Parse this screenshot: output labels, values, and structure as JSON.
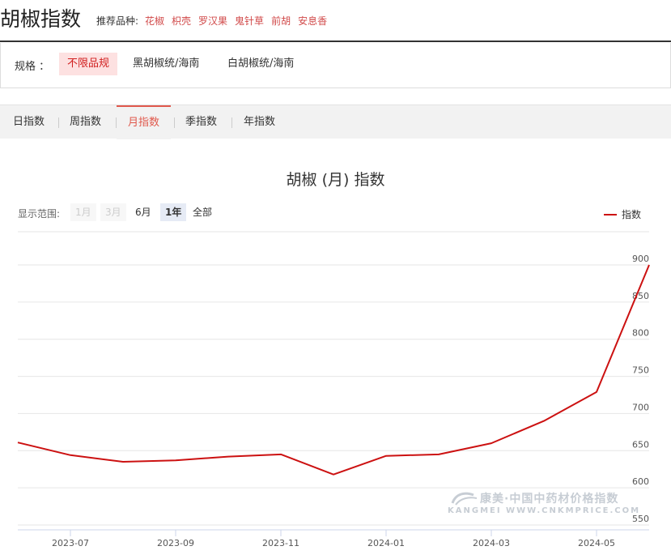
{
  "header": {
    "title": "胡椒指数",
    "recommend_label": "推荐品种:",
    "recommend_items": [
      "花椒",
      "枳壳",
      "罗汉果",
      "鬼针草",
      "前胡",
      "安息香"
    ]
  },
  "spec": {
    "label": "规格 ：",
    "options": [
      "不限品规",
      "黑胡椒统/海南",
      "白胡椒统/海南"
    ],
    "active": "不限品规"
  },
  "tabs": {
    "items": [
      "日指数",
      "周指数",
      "月指数",
      "季指数",
      "年指数"
    ],
    "active": "月指数"
  },
  "range": {
    "label": "显示范围:",
    "buttons": [
      "1月",
      "3月",
      "6月",
      "1年",
      "全部"
    ],
    "selected": "1年",
    "disabled": [
      "1月",
      "3月"
    ]
  },
  "legend": {
    "label": "指数",
    "color": "#cc1111"
  },
  "watermark": {
    "line1": "康美·中国中药材价格指数",
    "line2": "KANGMEI  WWW.CNKMPRICE.COM"
  },
  "chart_data": {
    "type": "line",
    "title": "胡椒 (月) 指数",
    "x": [
      "2023-06",
      "2023-07",
      "2023-08",
      "2023-09",
      "2023-10",
      "2023-11",
      "2023-12",
      "2024-01",
      "2024-02",
      "2024-03",
      "2024-04",
      "2024-05",
      "2024-06"
    ],
    "xtick_labels": [
      "2023-07",
      "2023-09",
      "2023-11",
      "2024-01",
      "2024-03",
      "2024-05"
    ],
    "series": [
      {
        "name": "指数",
        "color": "#cc1111",
        "values": [
          661,
          644,
          635,
          637,
          642,
          645,
          618,
          643,
          645,
          660,
          690,
          729,
          900
        ]
      }
    ],
    "ylim": [
      550,
      900
    ],
    "yticks": [
      550,
      600,
      650,
      700,
      750,
      800,
      850,
      900
    ],
    "grid": true,
    "legend_position": "top-right"
  }
}
